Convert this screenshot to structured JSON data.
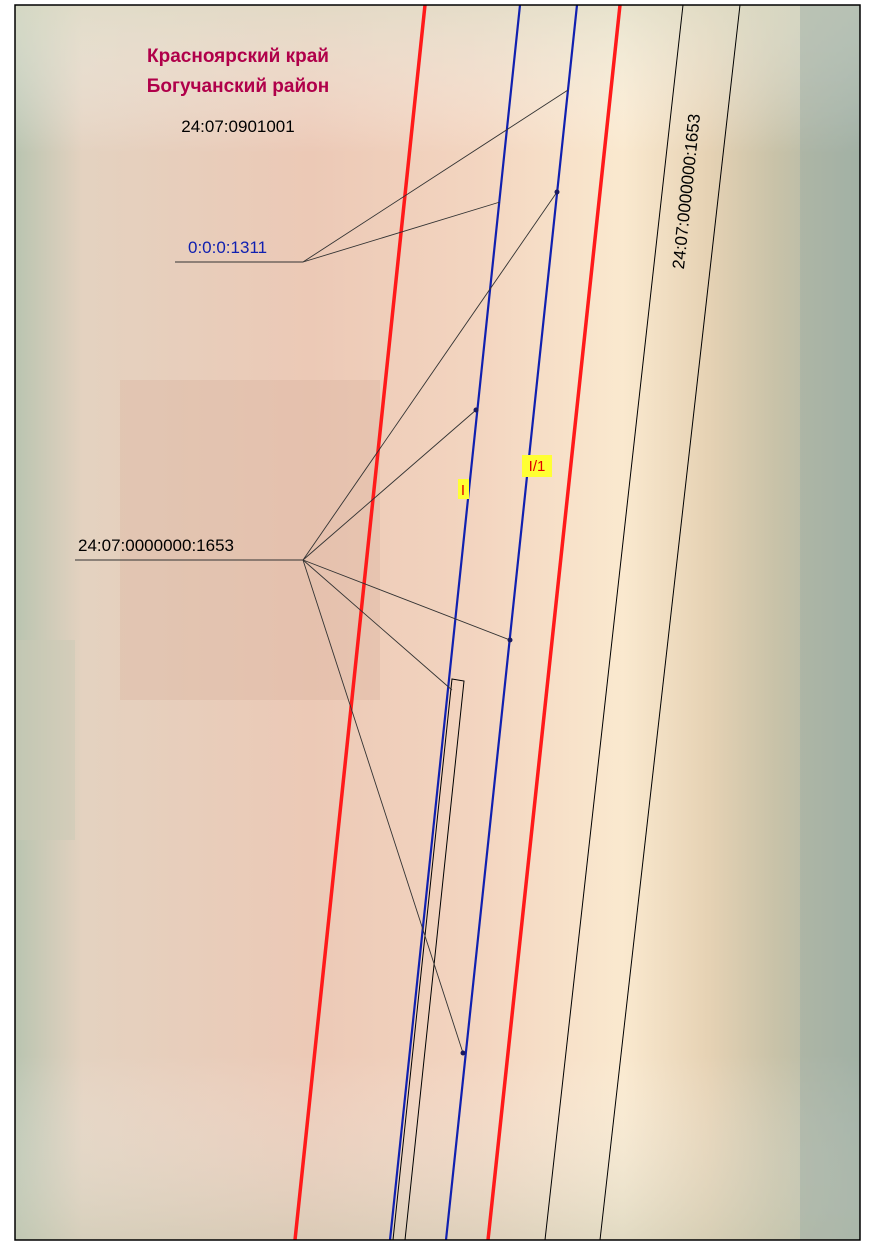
{
  "header": {
    "region": "Красноярский край",
    "district": "Богучанский район",
    "quarter": "24:07:0901001"
  },
  "labels": {
    "parcel_blue": "0:0:0:1311",
    "parcel_left": "24:07:0000000:1653",
    "parcel_rotated": "24:07:0000000:1653",
    "contour_1": "I",
    "contour_2": "I/1"
  }
}
